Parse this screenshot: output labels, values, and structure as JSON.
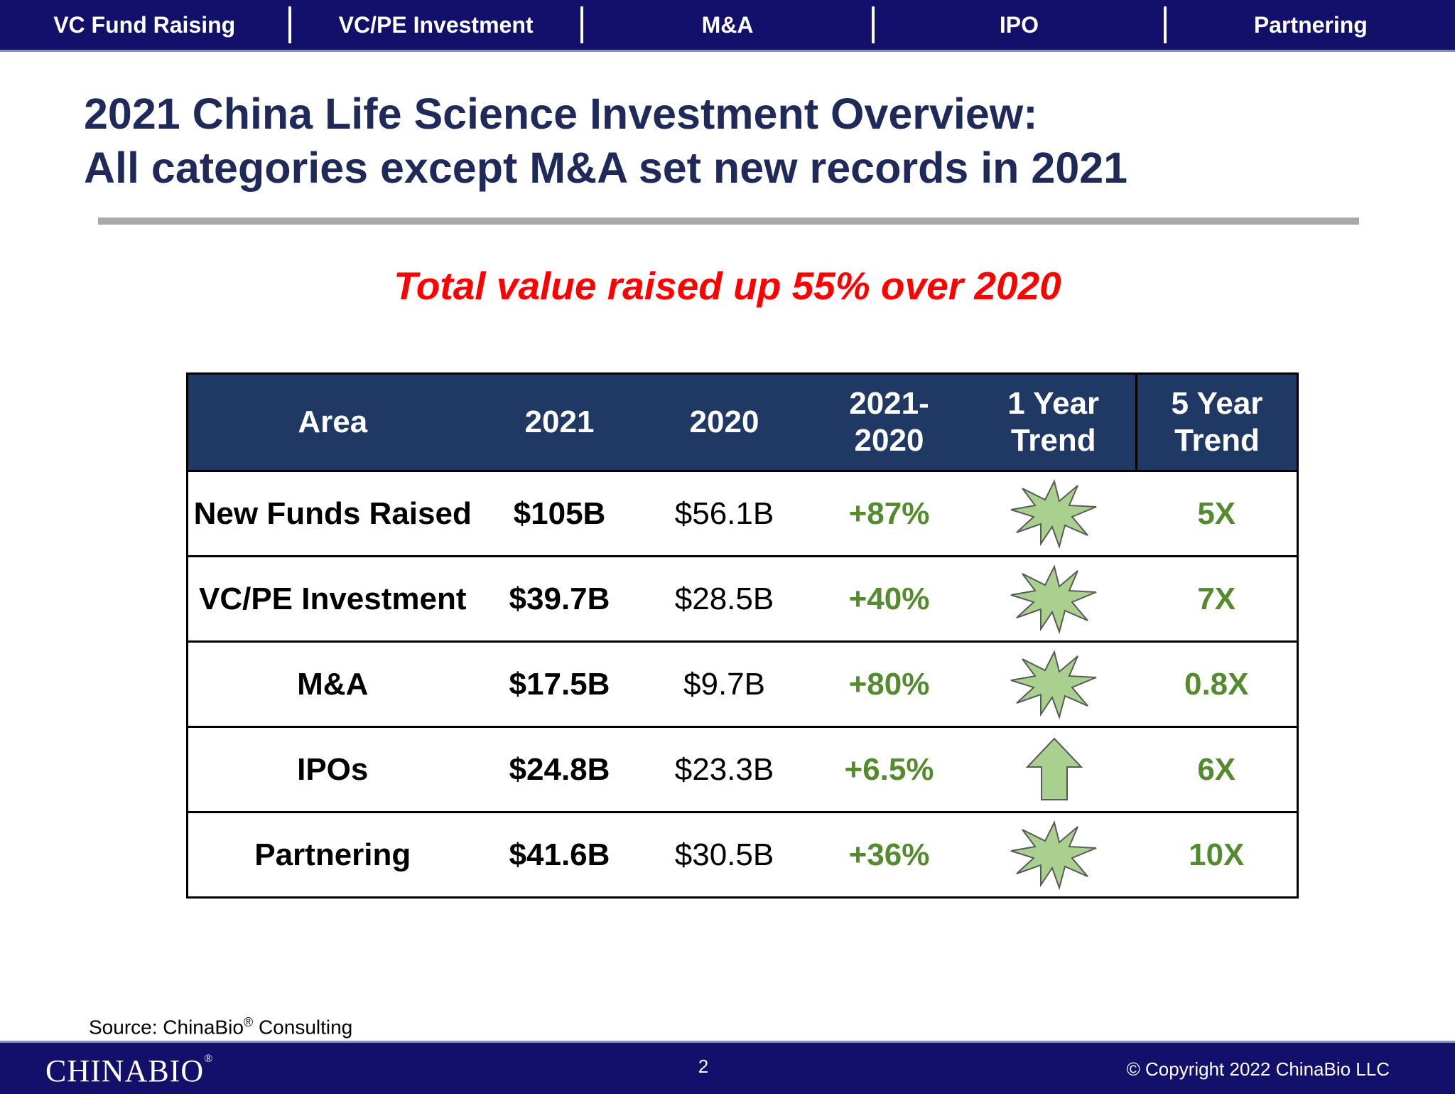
{
  "nav": {
    "items": [
      "VC Fund Raising",
      "VC/PE Investment",
      "M&A",
      "IPO",
      "Partnering"
    ]
  },
  "title": {
    "line1": "2021 China Life Science Investment Overview:",
    "line2": "All categories except M&A set new records in 2021"
  },
  "subtitle": "Total value raised up 55% over 2020",
  "table": {
    "headers": {
      "area": "Area",
      "y2021": "2021",
      "y2020": "2020",
      "change_l1": "2021-",
      "change_l2": "2020",
      "one_year_l1": "1 Year",
      "one_year_l2": "Trend",
      "five_year_l1": "5 Year",
      "five_year_l2": "Trend"
    },
    "rows": [
      {
        "area": "New Funds Raised",
        "v2021": "$105B",
        "v2020": "$56.1B",
        "change": "+87%",
        "trend_icon": "starburst-icon",
        "five_year": "5X"
      },
      {
        "area": "VC/PE Investment",
        "v2021": "$39.7B",
        "v2020": "$28.5B",
        "change": "+40%",
        "trend_icon": "starburst-icon",
        "five_year": "7X"
      },
      {
        "area": "M&A",
        "v2021": "$17.5B",
        "v2020": "$9.7B",
        "change": "+80%",
        "trend_icon": "starburst-icon",
        "five_year": "0.8X"
      },
      {
        "area": "IPOs",
        "v2021": "$24.8B",
        "v2020": "$23.3B",
        "change": "+6.5%",
        "trend_icon": "up-arrow-icon",
        "five_year": "6X"
      },
      {
        "area": "Partnering",
        "v2021": "$41.6B",
        "v2020": "$30.5B",
        "change": "+36%",
        "trend_icon": "starburst-icon",
        "five_year": "10X"
      }
    ]
  },
  "source": {
    "prefix": "Source: ChinaBio",
    "reg": "®",
    "suffix": " Consulting"
  },
  "footer": {
    "logo": "CHINABIO",
    "logo_reg": "®",
    "page": "2",
    "copyright": "© Copyright 2022 ChinaBio LLC"
  },
  "colors": {
    "nav_bg": "#13106b",
    "title": "#1f2a5a",
    "subtitle": "#ff0000",
    "header_bg": "#1f3864",
    "positive_green": "#558b2f",
    "icon_fill": "#a9d08e"
  }
}
